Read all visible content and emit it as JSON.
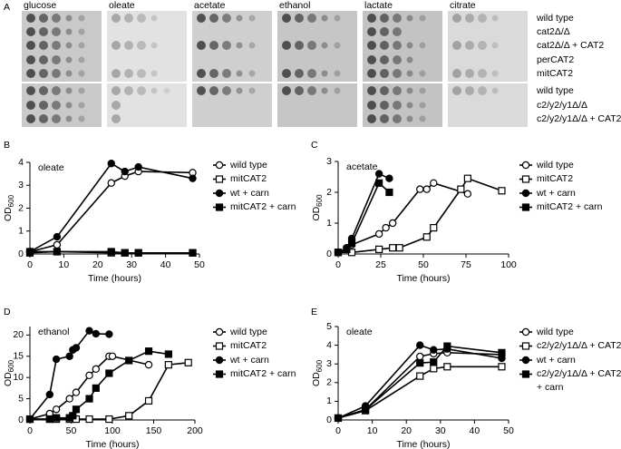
{
  "panel_a": {
    "label": "A",
    "media": [
      "glucose",
      "oleate",
      "acetate",
      "ethanol",
      "lactate",
      "citrate"
    ],
    "groups": [
      {
        "strains": [
          "wild type",
          "cat2Δ/Δ",
          "cat2Δ/Δ + CAT2",
          "perCAT2",
          "mitCAT2"
        ]
      },
      {
        "strains": [
          "wild type",
          "c2/y2/y1Δ/Δ",
          "c2/y2/y1Δ/Δ + CAT2"
        ]
      }
    ]
  },
  "chart_data": [
    {
      "type": "line",
      "label": "B",
      "title": "oleate",
      "xlabel": "Time (hours)",
      "ylabel": "OD",
      "ylabel_sub": "600",
      "xlim": [
        0,
        50
      ],
      "ylim": [
        0,
        4
      ],
      "xticks": [
        0,
        10,
        20,
        30,
        40,
        50
      ],
      "yticks": [
        0,
        1,
        2,
        3,
        4
      ],
      "series": [
        {
          "name": "wild type",
          "color": "#000000",
          "marker": "circle",
          "filled": false,
          "x": [
            0,
            8,
            24,
            28,
            32,
            48
          ],
          "values": [
            0.1,
            0.4,
            3.1,
            3.4,
            3.6,
            3.55
          ]
        },
        {
          "name": "mitCAT2",
          "color": "#000000",
          "marker": "square",
          "filled": false,
          "x": [
            0,
            8,
            24,
            28,
            32,
            48
          ],
          "values": [
            0.1,
            0.1,
            0.05,
            0.05,
            0.05,
            0.05
          ]
        },
        {
          "name": "wt + carn",
          "color": "#000000",
          "marker": "circle",
          "filled": true,
          "x": [
            0,
            8,
            24,
            28,
            32,
            48
          ],
          "values": [
            0.1,
            0.75,
            3.95,
            3.6,
            3.8,
            3.3
          ]
        },
        {
          "name": "mitCAT2 + carn",
          "color": "#000000",
          "marker": "square",
          "filled": true,
          "x": [
            0,
            8,
            24,
            28,
            32,
            48
          ],
          "values": [
            0.05,
            0.1,
            0.1,
            0.05,
            0.05,
            0.05
          ]
        }
      ]
    },
    {
      "type": "line",
      "label": "C",
      "title": "acetate",
      "xlabel": "Time (hours)",
      "ylabel": "OD",
      "ylabel_sub": "600",
      "xlim": [
        0,
        100
      ],
      "ylim": [
        0,
        3
      ],
      "xticks": [
        0,
        25,
        50,
        75,
        100
      ],
      "yticks": [
        0,
        1,
        2,
        3
      ],
      "series": [
        {
          "name": "wild type",
          "color": "#000000",
          "marker": "circle",
          "filled": false,
          "x": [
            0,
            5,
            8,
            24,
            28,
            32,
            48,
            52,
            56,
            76
          ],
          "values": [
            0.05,
            0.15,
            0.3,
            0.65,
            0.85,
            1.0,
            2.1,
            2.1,
            2.3,
            1.95
          ]
        },
        {
          "name": "mitCAT2",
          "color": "#000000",
          "marker": "square",
          "filled": false,
          "x": [
            0,
            8,
            24,
            32,
            36,
            52,
            56,
            72,
            76,
            96
          ],
          "values": [
            0.05,
            0.05,
            0.15,
            0.2,
            0.2,
            0.55,
            0.85,
            2.1,
            2.45,
            2.05
          ]
        },
        {
          "name": "wt + carn",
          "color": "#000000",
          "marker": "circle",
          "filled": true,
          "x": [
            0,
            5,
            8,
            24,
            30
          ],
          "values": [
            0.05,
            0.2,
            0.5,
            2.6,
            2.45
          ]
        },
        {
          "name": "mitCAT2 + carn",
          "color": "#000000",
          "marker": "square",
          "filled": true,
          "x": [
            0,
            5,
            8,
            24,
            30
          ],
          "values": [
            0.05,
            0.15,
            0.35,
            2.3,
            2.0
          ]
        }
      ]
    },
    {
      "type": "line",
      "label": "D",
      "title": "ethanol",
      "xlabel": "Time (hours)",
      "ylabel": "OD",
      "ylabel_sub": "600",
      "xlim": [
        0,
        200
      ],
      "ylim": [
        0,
        22
      ],
      "xticks": [
        0,
        50,
        100,
        150,
        200
      ],
      "yticks": [
        0,
        5,
        10,
        15,
        20
      ],
      "series": [
        {
          "name": "wild type",
          "color": "#000000",
          "marker": "circle",
          "filled": false,
          "x": [
            0,
            24,
            32,
            48,
            56,
            72,
            80,
            96,
            100,
            144
          ],
          "values": [
            0.2,
            1.5,
            2.5,
            5,
            6.5,
            10.5,
            12,
            15,
            15,
            13
          ]
        },
        {
          "name": "mitCAT2",
          "color": "#000000",
          "marker": "square",
          "filled": false,
          "x": [
            0,
            24,
            32,
            48,
            56,
            72,
            96,
            120,
            144,
            168,
            192
          ],
          "values": [
            0.2,
            0.2,
            0.2,
            0.2,
            0.2,
            0.2,
            0.2,
            1,
            4.5,
            13,
            13.5
          ]
        },
        {
          "name": "wt + carn",
          "color": "#000000",
          "marker": "circle",
          "filled": true,
          "x": [
            0,
            24,
            32,
            48,
            52,
            56,
            72,
            80,
            96
          ],
          "values": [
            0.2,
            6,
            14.3,
            15,
            16.5,
            17,
            21,
            20.3,
            20.2
          ]
        },
        {
          "name": "mitCAT2 + carn",
          "color": "#000000",
          "marker": "square",
          "filled": true,
          "x": [
            0,
            24,
            32,
            48,
            52,
            56,
            72,
            80,
            96,
            120,
            144,
            168
          ],
          "values": [
            0.2,
            0.2,
            0.5,
            0.5,
            1,
            2.5,
            5,
            7.5,
            11,
            14,
            16.2,
            15.5
          ]
        }
      ]
    },
    {
      "type": "line",
      "label": "E",
      "title": "oleate",
      "xlabel": "Time (hours)",
      "ylabel": "OD",
      "ylabel_sub": "600",
      "xlim": [
        0,
        50
      ],
      "ylim": [
        0,
        5
      ],
      "xticks": [
        0,
        10,
        20,
        30,
        40,
        50
      ],
      "yticks": [
        0,
        1,
        2,
        3,
        4,
        5
      ],
      "series": [
        {
          "name": "wild type",
          "color": "#000000",
          "marker": "circle",
          "filled": false,
          "x": [
            0,
            8,
            24,
            28,
            32,
            48
          ],
          "values": [
            0.1,
            0.55,
            3.4,
            3.55,
            3.6,
            3.5
          ]
        },
        {
          "name": "c2/y2/y1Δ/Δ + CAT2",
          "color": "#000000",
          "marker": "square",
          "filled": false,
          "x": [
            0,
            8,
            24,
            28,
            32,
            48
          ],
          "values": [
            0.1,
            0.5,
            2.35,
            2.75,
            2.85,
            2.85
          ]
        },
        {
          "name": "wt + carn",
          "color": "#000000",
          "marker": "circle",
          "filled": true,
          "x": [
            0,
            8,
            24,
            28,
            32,
            48
          ],
          "values": [
            0.1,
            0.75,
            4.0,
            3.75,
            3.8,
            3.3
          ]
        },
        {
          "name": "c2/y2/y1Δ/Δ + CAT2\n+ carn",
          "color": "#000000",
          "marker": "square",
          "filled": true,
          "x": [
            0,
            8,
            24,
            28,
            32,
            48
          ],
          "values": [
            0.1,
            0.55,
            3.05,
            3.1,
            3.95,
            3.6
          ]
        }
      ]
    }
  ]
}
